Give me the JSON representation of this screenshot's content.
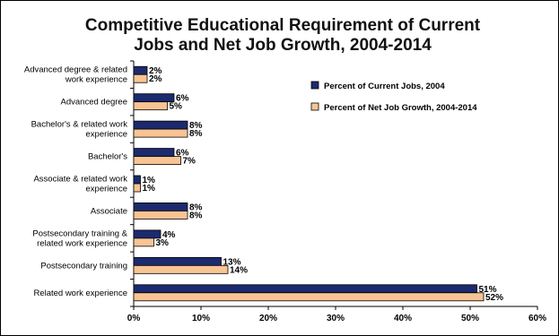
{
  "chart_data": {
    "type": "bar",
    "orientation": "horizontal",
    "title_lines": [
      "Competitive Educational Requirement of Current",
      "Jobs and Net Job Growth, 2004-2014"
    ],
    "categories": [
      [
        "Advanced degree & related",
        "work experience"
      ],
      [
        "Advanced degree"
      ],
      [
        "Bachelor's & related work",
        "experience"
      ],
      [
        "Bachelor's"
      ],
      [
        "Associate & related work",
        "experience"
      ],
      [
        "Associate"
      ],
      [
        "Postsecondary training &",
        "related work experience"
      ],
      [
        "Postsecondary training"
      ],
      [
        "Related work experience"
      ]
    ],
    "series": [
      {
        "name": "Percent of Current Jobs, 2004",
        "color": "#1c2a6e",
        "values": [
          2,
          6,
          8,
          6,
          1,
          8,
          4,
          13,
          51
        ],
        "labels": [
          "2%",
          "6%",
          "8%",
          "6%",
          "1%",
          "8%",
          "4%",
          "13%",
          "51%"
        ]
      },
      {
        "name": "Percent of Net Job Growth, 2004-2014",
        "color": "#f8c493",
        "values": [
          2,
          5,
          8,
          7,
          1,
          8,
          3,
          14,
          52
        ],
        "labels": [
          "2%",
          "5%",
          "8%",
          "7%",
          "1%",
          "8%",
          "3%",
          "14%",
          "52%"
        ]
      }
    ],
    "xlim": [
      0,
      60
    ],
    "xticks": [
      0,
      10,
      20,
      30,
      40,
      50,
      60
    ],
    "xtick_labels": [
      "0%",
      "10%",
      "20%",
      "30%",
      "40%",
      "50%",
      "60%"
    ],
    "grid": false,
    "legend_position": "right"
  }
}
